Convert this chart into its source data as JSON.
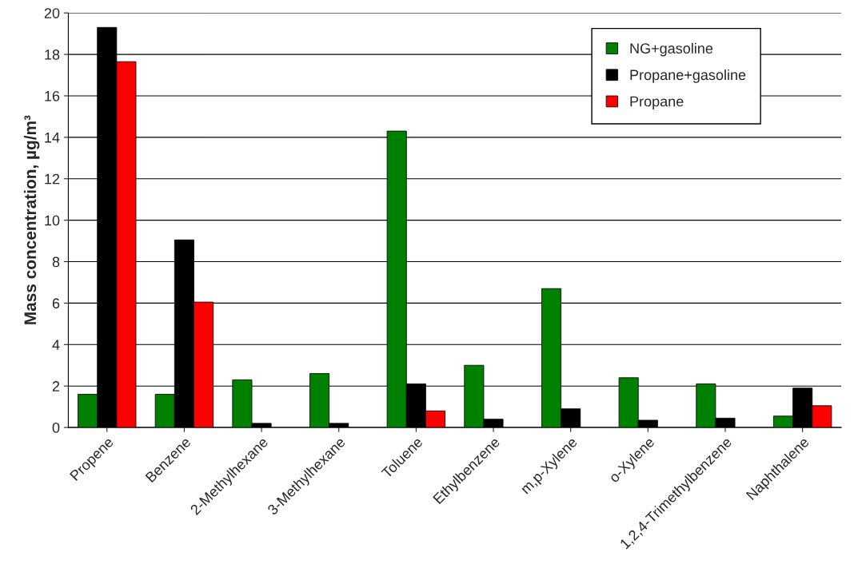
{
  "chart_data": {
    "type": "bar",
    "ylabel": "Mass concentration, µg/m³",
    "categories": [
      "Propene",
      "Benzene",
      "2-Methylhexane",
      "3-Methylhexane",
      "Toluene",
      "Ethylbenzene",
      "m,p-Xylene",
      "o-Xylene",
      "1,2,4-Trimethylbenzene",
      "Naphthalene"
    ],
    "series": [
      {
        "name": "NG+gasoline",
        "color": "#008000",
        "values": [
          1.6,
          1.6,
          2.3,
          2.6,
          14.3,
          3.0,
          6.7,
          2.4,
          2.1,
          0.55
        ]
      },
      {
        "name": "Propane+gasoline",
        "color": "#000000",
        "values": [
          19.3,
          9.05,
          0.2,
          0.2,
          2.1,
          0.4,
          0.9,
          0.35,
          0.45,
          1.9
        ]
      },
      {
        "name": "Propane",
        "color": "#ff0000",
        "values": [
          17.65,
          6.05,
          null,
          null,
          0.8,
          null,
          null,
          null,
          null,
          1.05
        ]
      }
    ],
    "ylim": [
      0,
      20
    ],
    "yticks": [
      0,
      2,
      4,
      6,
      8,
      10,
      12,
      14,
      16,
      18,
      20
    ],
    "grid": "y",
    "legend": "top right"
  }
}
